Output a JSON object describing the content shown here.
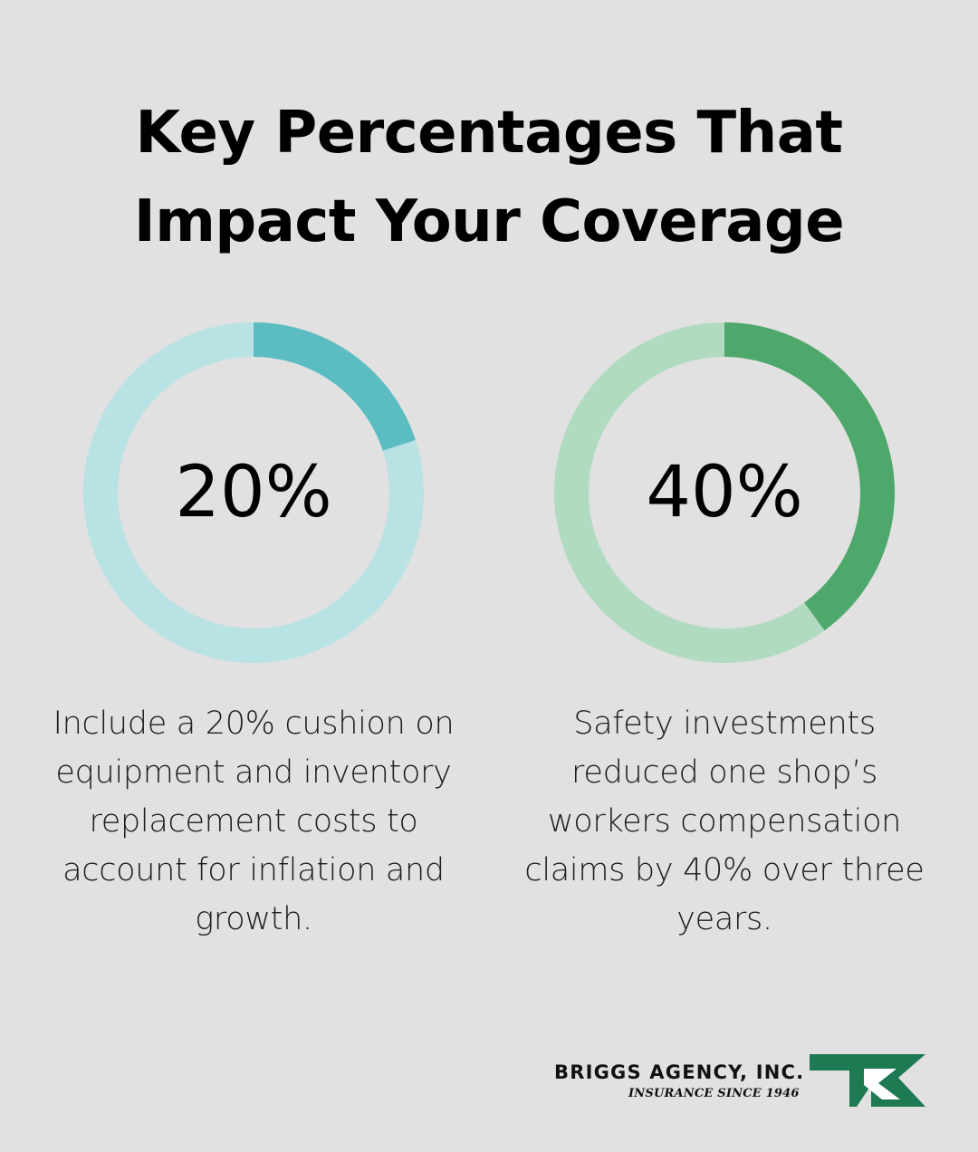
{
  "title": {
    "line1": "Key Percentages That",
    "line2": "Impact Your Coverage"
  },
  "chart_data": [
    {
      "type": "pie",
      "variant": "donut",
      "value_label": "20%",
      "values": [
        20,
        80
      ],
      "colors": {
        "value": "#5bbcc1",
        "remainder": "#b9e2e4"
      },
      "caption": "Include a 20% cushion on equipment and inventory replacement costs to account for inflation and growth."
    },
    {
      "type": "pie",
      "variant": "donut",
      "value_label": "40%",
      "values": [
        40,
        60
      ],
      "colors": {
        "value": "#4ea76b",
        "remainder": "#b0dbc0"
      },
      "caption": "Safety investments reduced one shop’s workers compensation claims by 40% over three years."
    }
  ],
  "logo": {
    "name": "BRIGGS AGENCY, INC.",
    "tagline": "INSURANCE SINCE 1946",
    "mark_color": "#1e7a52",
    "mark_icon": "bk-monogram-icon"
  }
}
